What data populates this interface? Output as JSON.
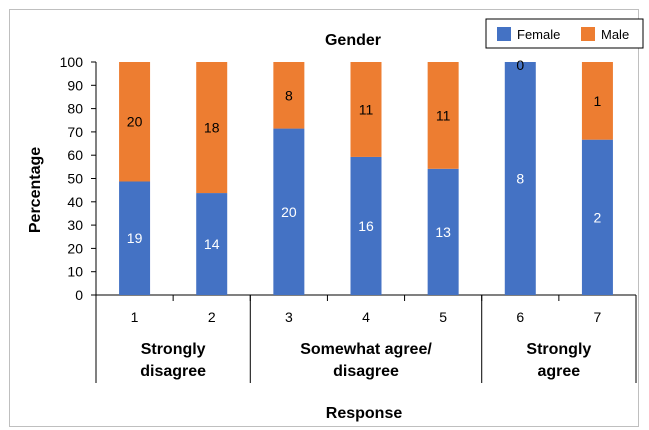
{
  "chart_data": {
    "type": "bar",
    "stacked": true,
    "percent_stacked": true,
    "title": "Gender",
    "xlabel": "Response",
    "ylabel": "Percentage",
    "ylim": [
      0,
      100
    ],
    "yticks": [
      0,
      10,
      20,
      30,
      40,
      50,
      60,
      70,
      80,
      90,
      100
    ],
    "categories": [
      "1",
      "2",
      "3",
      "4",
      "5",
      "6",
      "7"
    ],
    "groups": [
      {
        "label_lines": [
          "Strongly",
          "disagree"
        ],
        "categories": [
          "1",
          "2"
        ]
      },
      {
        "label_lines": [
          "Somewhat agree/",
          "disagree"
        ],
        "categories": [
          "3",
          "4",
          "5"
        ]
      },
      {
        "label_lines": [
          "Strongly",
          "agree"
        ],
        "categories": [
          "6",
          "7"
        ]
      }
    ],
    "series": [
      {
        "name": "Female",
        "color": "#4472c4",
        "counts": [
          19,
          14,
          20,
          16,
          13,
          8,
          2
        ]
      },
      {
        "name": "Male",
        "color": "#ed7d31",
        "counts": [
          20,
          18,
          8,
          11,
          11,
          0,
          1
        ]
      }
    ],
    "legend_position": "top-right",
    "grid": false
  }
}
